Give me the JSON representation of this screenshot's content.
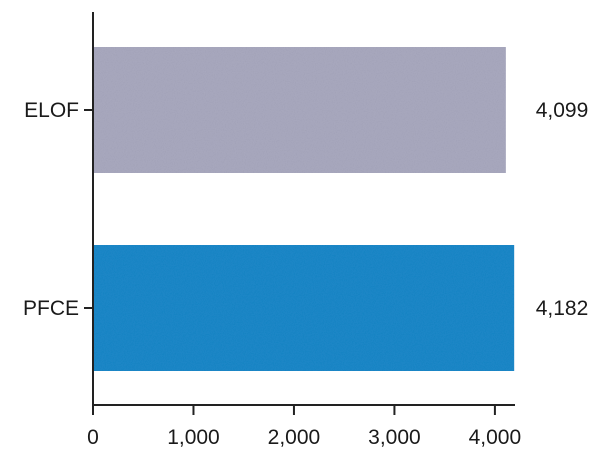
{
  "chart_data": {
    "type": "bar",
    "orientation": "horizontal",
    "categories": [
      "ELOF",
      "PFCE"
    ],
    "values": [
      4099,
      4182
    ],
    "value_labels": [
      "4,099",
      "4,182"
    ],
    "colors": [
      "#a9a9bf",
      "#1a88c9"
    ],
    "xlim": [
      0,
      4200
    ],
    "x_ticks": [
      0,
      1000,
      2000,
      3000,
      4000
    ],
    "x_tick_labels": [
      "0",
      "1,000",
      "2,000",
      "3,000",
      "4,000"
    ],
    "title": "",
    "xlabel": "",
    "ylabel": "",
    "grid": false,
    "legend": "none"
  }
}
